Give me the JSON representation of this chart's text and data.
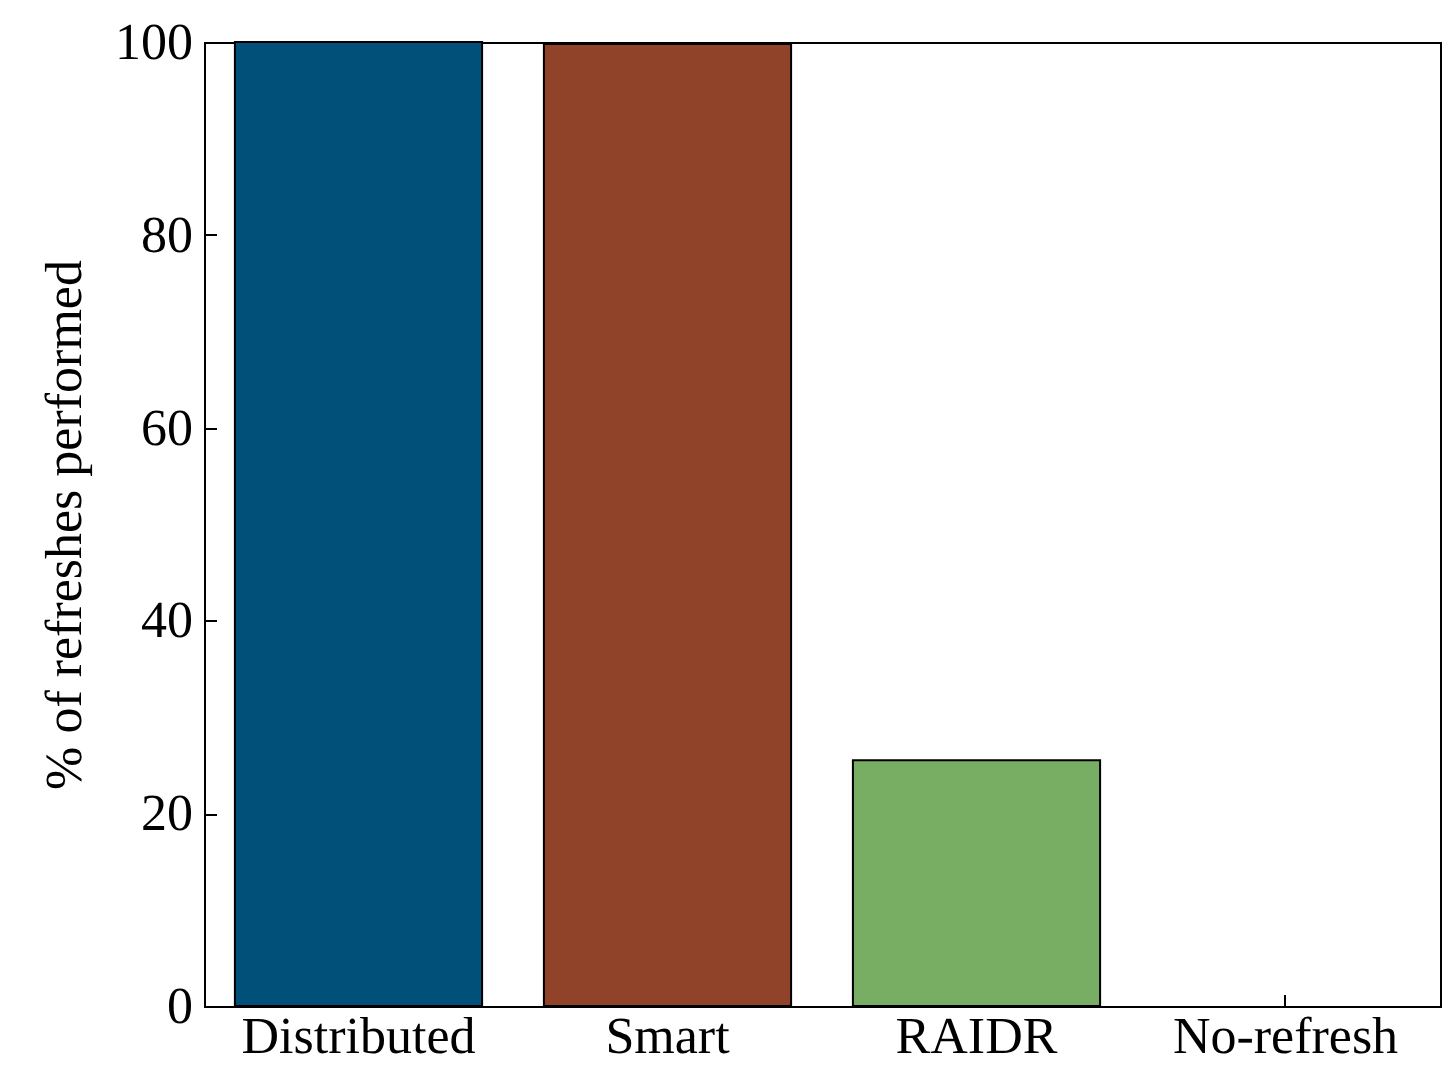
{
  "chart_data": {
    "type": "bar",
    "ylabel": "% of refreshes performed",
    "categories": [
      "Distributed",
      "Smart",
      "RAIDR",
      "No-refresh"
    ],
    "values": [
      100,
      99.8,
      25.5,
      0
    ],
    "colors": [
      "#00507a",
      "#91432a",
      "#78ae63",
      "#78ae63"
    ],
    "ylim": [
      0,
      100
    ],
    "yticks": [
      0,
      20,
      40,
      60,
      80,
      100
    ],
    "grid": false,
    "legend": false
  }
}
